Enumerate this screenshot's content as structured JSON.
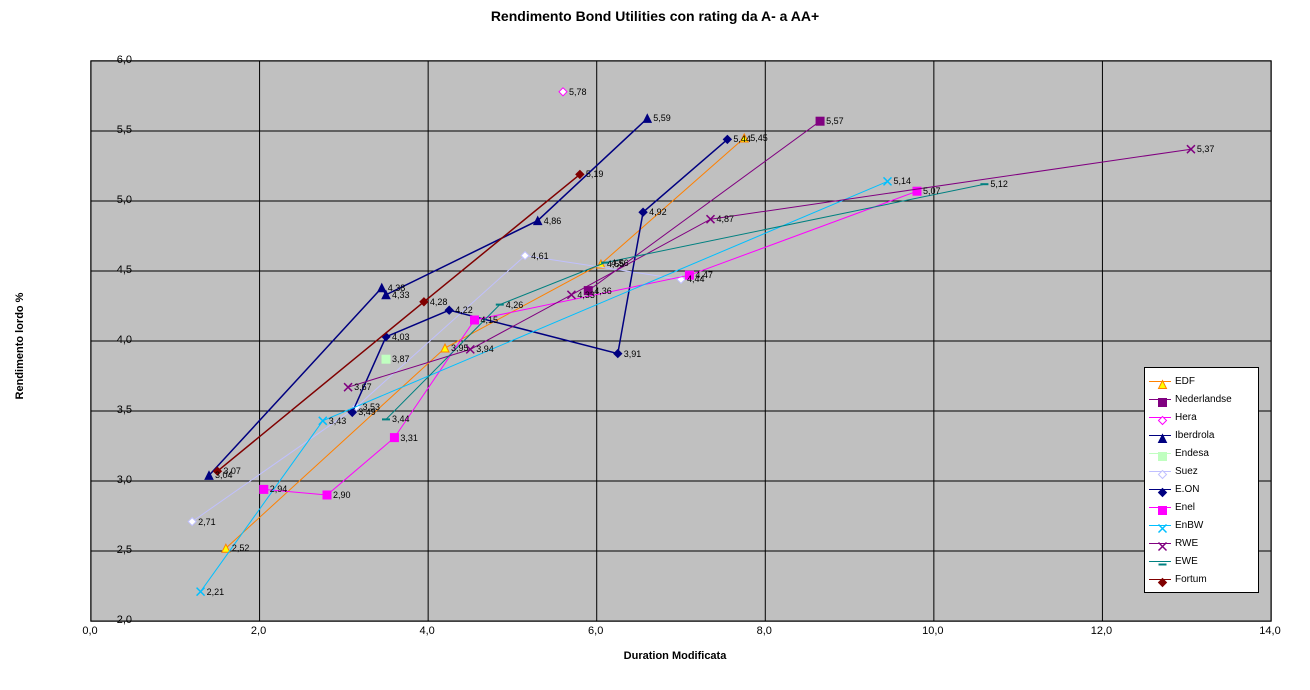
{
  "title": "Rendimento Bond Utilities con rating da A- a AA+",
  "x_axis_title": "Duration Modificata",
  "y_axis_title": "Rendimento lordo %",
  "xlim": [
    0.0,
    14.0
  ],
  "ylim": [
    2.0,
    6.0
  ],
  "xtick_step": 2.0,
  "ytick_step": 0.5,
  "background_color": "#c0c0c0",
  "grid_color": "#000000",
  "label_fontsize": 11,
  "title_fontsize": 14,
  "x_ticks": [
    "0,0",
    "2,0",
    "4,0",
    "6,0",
    "8,0",
    "10,0",
    "12,0",
    "14,0"
  ],
  "y_ticks": [
    "2,0",
    "2,5",
    "3,0",
    "3,5",
    "4,0",
    "4,5",
    "5,0",
    "5,5",
    "6,0"
  ],
  "series": [
    {
      "name": "EDF",
      "color": "#ff8000",
      "marker": "triangle",
      "marker_fill": "#ffff00",
      "line_width": 1,
      "points": [
        {
          "x": 1.6,
          "y": 2.52,
          "label": "2,52"
        },
        {
          "x": 4.2,
          "y": 3.95,
          "label": "3,95"
        },
        {
          "x": 6.05,
          "y": 4.55,
          "label": "4,55"
        },
        {
          "x": 7.75,
          "y": 5.45,
          "label": "5,45"
        }
      ]
    },
    {
      "name": "Nederlandse",
      "color": "#800080",
      "marker": "square",
      "marker_fill": "#800080",
      "line_width": 1,
      "points": [
        {
          "x": 5.9,
          "y": 4.36,
          "label": "4,36"
        },
        {
          "x": 8.65,
          "y": 5.57,
          "label": "5,57"
        }
      ]
    },
    {
      "name": "Hera",
      "color": "#ff00ff",
      "marker": "diamond",
      "marker_fill": "#ffffff",
      "line_width": 1,
      "points": [
        {
          "x": 5.6,
          "y": 5.78,
          "label": "5,78"
        }
      ]
    },
    {
      "name": "Iberdrola",
      "color": "#000080",
      "marker": "triangle",
      "marker_fill": "#000080",
      "line_width": 1.5,
      "points": [
        {
          "x": 1.4,
          "y": 3.04,
          "label": "3,04"
        },
        {
          "x": 3.45,
          "y": 4.38,
          "label": "4,38"
        },
        {
          "x": 3.5,
          "y": 4.33,
          "label": "4,33"
        },
        {
          "x": 5.3,
          "y": 4.86,
          "label": "4,86"
        },
        {
          "x": 6.6,
          "y": 5.59,
          "label": "5,59"
        }
      ]
    },
    {
      "name": "Endesa",
      "color": "#c0ffc0",
      "marker": "square",
      "marker_fill": "#c0ffc0",
      "line_width": 1,
      "points": [
        {
          "x": 3.5,
          "y": 3.87,
          "label": "3,87"
        }
      ]
    },
    {
      "name": "Suez",
      "color": "#c0c0ff",
      "marker": "diamond",
      "marker_fill": "#ffffff",
      "line_width": 1,
      "points": [
        {
          "x": 1.2,
          "y": 2.71,
          "label": "2,71"
        },
        {
          "x": 3.15,
          "y": 3.53,
          "label": "3,53"
        },
        {
          "x": 5.15,
          "y": 4.61,
          "label": "4,61"
        },
        {
          "x": 7.0,
          "y": 4.44,
          "label": "4,44"
        }
      ]
    },
    {
      "name": "E.ON",
      "color": "#000080",
      "marker": "diamond",
      "marker_fill": "#000080",
      "line_width": 1.5,
      "points": [
        {
          "x": 3.1,
          "y": 3.49,
          "label": "3,49"
        },
        {
          "x": 3.5,
          "y": 4.03,
          "label": "4,03"
        },
        {
          "x": 4.25,
          "y": 4.22,
          "label": "4,22"
        },
        {
          "x": 6.25,
          "y": 3.91,
          "label": "3,91"
        },
        {
          "x": 6.55,
          "y": 4.92,
          "label": "4,92"
        },
        {
          "x": 7.55,
          "y": 5.44,
          "label": "5,44"
        }
      ]
    },
    {
      "name": "Enel",
      "color": "#ff00ff",
      "marker": "square",
      "marker_fill": "#ff00ff",
      "line_width": 1,
      "points": [
        {
          "x": 2.05,
          "y": 2.94,
          "label": "2,94"
        },
        {
          "x": 2.8,
          "y": 2.9,
          "label": "2,90"
        },
        {
          "x": 3.6,
          "y": 3.31,
          "label": "3,31"
        },
        {
          "x": 4.55,
          "y": 4.15,
          "label": "4,15"
        },
        {
          "x": 7.1,
          "y": 4.47,
          "label": "4,47"
        },
        {
          "x": 9.8,
          "y": 5.07,
          "label": "5,07"
        }
      ]
    },
    {
      "name": "EnBW",
      "color": "#00bfff",
      "marker": "x",
      "marker_fill": "#00bfff",
      "line_width": 1,
      "points": [
        {
          "x": 1.3,
          "y": 2.21,
          "label": "2,21"
        },
        {
          "x": 2.75,
          "y": 3.43,
          "label": "3,43"
        },
        {
          "x": 9.45,
          "y": 5.14,
          "label": "5,14"
        }
      ]
    },
    {
      "name": "RWE",
      "color": "#800080",
      "marker": "x",
      "marker_fill": "#800080",
      "line_width": 1,
      "points": [
        {
          "x": 3.05,
          "y": 3.67,
          "label": "3,67"
        },
        {
          "x": 4.5,
          "y": 3.94,
          "label": "3,94"
        },
        {
          "x": 5.7,
          "y": 4.33,
          "label": "4,33"
        },
        {
          "x": 7.35,
          "y": 4.87,
          "label": "4,87"
        },
        {
          "x": 13.05,
          "y": 5.37,
          "label": "5,37"
        }
      ]
    },
    {
      "name": "EWE",
      "color": "#008080",
      "marker": "dash",
      "marker_fill": "#008080",
      "line_width": 1,
      "points": [
        {
          "x": 3.5,
          "y": 3.44,
          "label": "3,44"
        },
        {
          "x": 4.85,
          "y": 4.26,
          "label": "4,26"
        },
        {
          "x": 6.1,
          "y": 4.56,
          "label": "4,56"
        },
        {
          "x": 10.6,
          "y": 5.12,
          "label": "5,12"
        }
      ]
    },
    {
      "name": "Fortum",
      "color": "#800000",
      "marker": "diamond",
      "marker_fill": "#800000",
      "line_width": 1.5,
      "points": [
        {
          "x": 1.5,
          "y": 3.07,
          "label": "3,07"
        },
        {
          "x": 3.95,
          "y": 4.28,
          "label": "4,28"
        },
        {
          "x": 5.8,
          "y": 5.19,
          "label": "5,19"
        }
      ]
    }
  ]
}
